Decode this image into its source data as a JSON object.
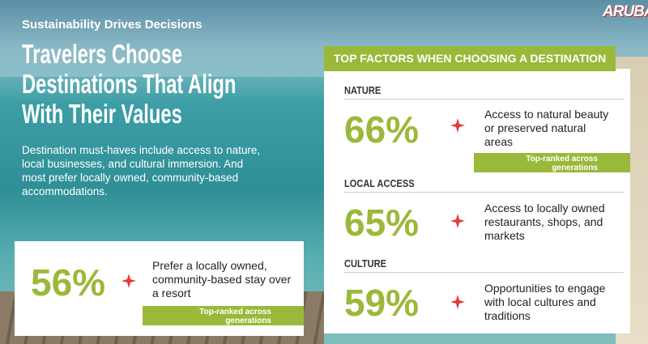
{
  "header": {
    "kicker": "Sustainability Drives Decisions",
    "title_lines": [
      "Travelers Choose",
      "Destinations That Align",
      "With Their Values"
    ],
    "body": "Destination must-haves include access to nature, local businesses, and cultural immersion. And most prefer locally owned, community-based accommodations."
  },
  "logo": "ARUBA",
  "callout": {
    "value": "56%",
    "text": "Prefer a locally owned, community-based stay over a resort",
    "badge": "Top-ranked across generations"
  },
  "panel": {
    "title": "TOP FACTORS WHEN CHOOSING A DESTINATION",
    "factors": [
      {
        "label": "NATURE",
        "value": "66%",
        "text": "Access to natural beauty or preserved natural areas",
        "badge": "Top-ranked across generations"
      },
      {
        "label": "LOCAL ACCESS",
        "value": "65%",
        "text": "Access to locally owned restaurants, shops, and markets"
      },
      {
        "label": "CULTURE",
        "value": "59%",
        "text": "Opportunities to engage with local cultures and traditions"
      }
    ]
  }
}
